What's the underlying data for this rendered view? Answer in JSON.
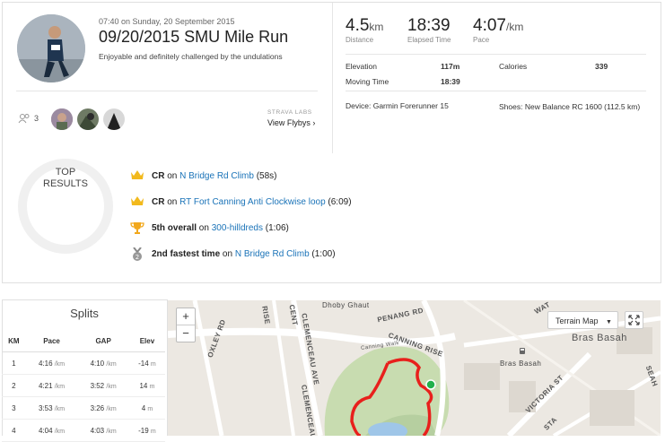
{
  "activity": {
    "datetime": "07:40 on Sunday, 20 September 2015",
    "title": "09/20/2015 SMU Mile Run",
    "description": "Enjoyable and definitely challenged by the undulations",
    "kudos_count": "3",
    "labs_label": "STRAVA LABS",
    "flyby_label": "View Flybys"
  },
  "stats": {
    "distance": {
      "value": "4.5",
      "unit": "km",
      "label": "Distance"
    },
    "elapsed": {
      "value": "18:39",
      "label": "Elapsed Time"
    },
    "pace": {
      "value": "4:07",
      "unit": "/km",
      "label": "Pace"
    },
    "elevation": {
      "label": "Elevation",
      "value": "117m"
    },
    "moving_time": {
      "label": "Moving Time",
      "value": "18:39"
    },
    "calories": {
      "label": "Calories",
      "value": "339"
    },
    "device": "Device: Garmin Forerunner 15",
    "shoes": "Shoes: New Balance RC 1600 (112.5 km)"
  },
  "top_results": {
    "heading_line1": "TOP",
    "heading_line2": "RESULTS",
    "items": [
      {
        "icon": "crown-icon",
        "prefix": "CR",
        "mid": " on ",
        "link": "N Bridge Rd Climb",
        "suffix": " (58s)"
      },
      {
        "icon": "crown-icon",
        "prefix": "CR",
        "mid": " on ",
        "link": "RT Fort Canning Anti Clockwise loop",
        "suffix": " (6:09)"
      },
      {
        "icon": "trophy-icon",
        "prefix": "5th overall",
        "mid": " on ",
        "link": "300-hilldreds",
        "suffix": " (1:06)"
      },
      {
        "icon": "medal-icon",
        "prefix": "2nd fastest time",
        "mid": " on ",
        "link": "N Bridge Rd Climb",
        "suffix": " (1:00)"
      }
    ]
  },
  "splits": {
    "title": "Splits",
    "headers": [
      "KM",
      "Pace",
      "GAP",
      "Elev"
    ],
    "unit_pace": "/km",
    "unit_elev": "m",
    "rows": [
      {
        "km": "1",
        "pace": "4:16",
        "gap": "4:10",
        "elev": "-14"
      },
      {
        "km": "2",
        "pace": "4:21",
        "gap": "3:52",
        "elev": "14"
      },
      {
        "km": "3",
        "pace": "3:53",
        "gap": "3:26",
        "elev": "4"
      },
      {
        "km": "4",
        "pace": "4:04",
        "gap": "4:03",
        "elev": "-19"
      }
    ]
  },
  "map": {
    "zoom_in": "+",
    "zoom_out": "−",
    "type_label": "Terrain Map",
    "labels": {
      "dhoby": "Dhoby Ghaut",
      "penang": "PENANG RD",
      "canning_rise": "CANNING RISE",
      "canning_walk": "Canning Walk",
      "oxley": "OXLEY RD",
      "clemenceau": "CLEMENCEAU AVE",
      "clemenceau2": "CLEMENCEAU",
      "bras_basah": "Bras Basah",
      "bras_basah_station": "Bras Basah",
      "victoria": "VICTORIA ST",
      "cent": "CENT",
      "sta": "STA",
      "sea": "SEAH",
      "wat": "WAT",
      "rise": "RISE"
    },
    "route_color": "#e8201c",
    "marker_color": "#22b14c"
  }
}
